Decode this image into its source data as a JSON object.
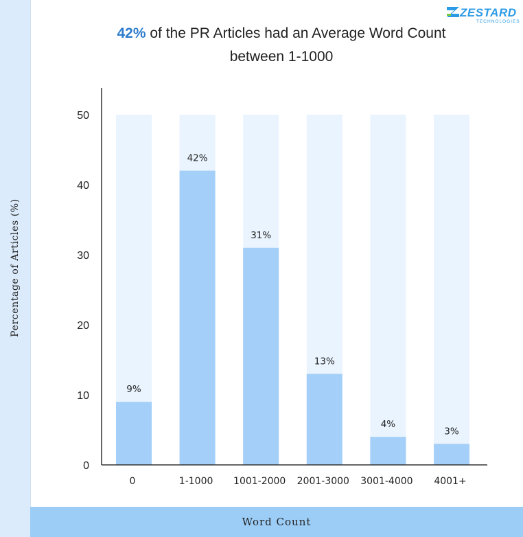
{
  "header": {
    "title_highlight": "42%",
    "title_line1_rest": " of the PR Articles had an Average Word Count",
    "title_line2": "between 1-1000"
  },
  "logo": {
    "name": "ZESTARD",
    "tagline": "TECHNOLOGIES"
  },
  "colors": {
    "bar": "#a3cff8",
    "bar_background": "#eaf4fe",
    "title_accent": "#2e7dcc",
    "strip": "#9ccdf7",
    "logo": "#2c9be6",
    "logo_accent": "#7ac943"
  },
  "chart_data": {
    "type": "bar",
    "title": "42% of the PR Articles had an Average Word Count between 1-1000",
    "xlabel": "Word Count",
    "ylabel": "Percentage of Articles (%)",
    "categories": [
      "0",
      "1-1000",
      "1001-2000",
      "2001-3000",
      "3001-4000",
      "4001+"
    ],
    "values": [
      9,
      42,
      31,
      13,
      4,
      3
    ],
    "data_labels": [
      "9%",
      "42%",
      "31%",
      "13%",
      "4%",
      "3%"
    ],
    "ylim": [
      0,
      50
    ],
    "yticks": [
      0,
      10,
      20,
      30,
      40,
      50
    ],
    "grid": false,
    "legend": "none"
  }
}
